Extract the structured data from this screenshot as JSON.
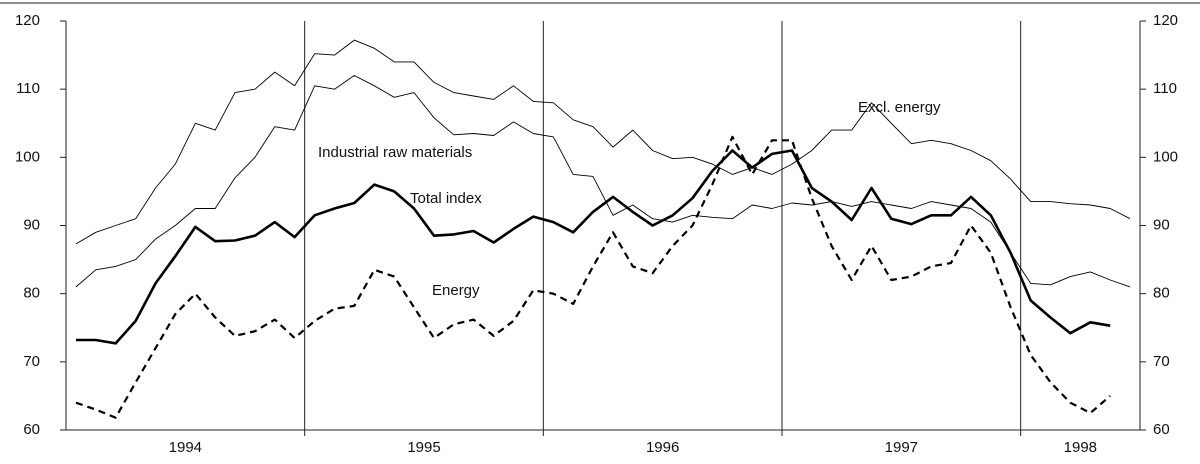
{
  "chart_data": {
    "type": "line",
    "x": [
      1994.042,
      1994.125,
      1994.208,
      1994.292,
      1994.375,
      1994.458,
      1994.542,
      1994.625,
      1994.708,
      1994.792,
      1994.875,
      1994.958,
      1995.042,
      1995.125,
      1995.208,
      1995.292,
      1995.375,
      1995.458,
      1995.542,
      1995.625,
      1995.708,
      1995.792,
      1995.875,
      1995.958,
      1996.042,
      1996.125,
      1996.208,
      1996.292,
      1996.375,
      1996.458,
      1996.542,
      1996.625,
      1996.708,
      1996.792,
      1996.875,
      1996.958,
      1997.042,
      1997.125,
      1997.208,
      1997.292,
      1997.375,
      1997.458,
      1997.542,
      1997.625,
      1997.708,
      1997.792,
      1997.875,
      1997.958,
      1998.042,
      1998.125,
      1998.208,
      1998.292,
      1998.375,
      1998.458
    ],
    "xlim": [
      1994,
      1998.5
    ],
    "xticks": [
      {
        "value": 1994.5,
        "label": "1994"
      },
      {
        "value": 1995.5,
        "label": "1995"
      },
      {
        "value": 1996.5,
        "label": "1996"
      },
      {
        "value": 1997.5,
        "label": "1997"
      },
      {
        "value": 1998.25,
        "label": "1998"
      }
    ],
    "xgrid": [
      1995,
      1996,
      1997,
      1998
    ],
    "ylim": [
      60,
      120
    ],
    "yticks": [
      60,
      70,
      80,
      90,
      100,
      110,
      120
    ],
    "y2lim": [
      60,
      120
    ],
    "y2ticks": [
      60,
      70,
      80,
      90,
      100,
      110,
      120
    ],
    "series": [
      {
        "name": "Total index",
        "color": "#000000",
        "line_width": 2.6,
        "line_style": "solid",
        "values": [
          73.2,
          73.2,
          72.7,
          76,
          81.5,
          85.5,
          89.8,
          87.7,
          87.8,
          88.5,
          90.5,
          88.3,
          91.5,
          92.5,
          93.3,
          96,
          95,
          92.5,
          88.5,
          88.7,
          89.2,
          87.5,
          89.5,
          91.3,
          90.5,
          89,
          92,
          94.2,
          92,
          90,
          91.5,
          94,
          98,
          101,
          98.5,
          100.5,
          101,
          95.5,
          93.5,
          90.8,
          95.5,
          91,
          90.2,
          91.5,
          91.5,
          94.2,
          91.5,
          86,
          79,
          76.5,
          74.2,
          75.8,
          75.3,
          null
        ]
      },
      {
        "name": "Energy",
        "color": "#000000",
        "line_width": 2.2,
        "line_style": "dashed",
        "values": [
          64,
          63,
          61.8,
          67,
          72,
          77,
          80,
          76.5,
          73.8,
          74.5,
          76.2,
          73.5,
          76,
          77.8,
          78.2,
          83.5,
          82.5,
          78,
          73.5,
          75.5,
          76.2,
          73.8,
          76,
          80.5,
          80,
          78.5,
          84,
          89,
          84,
          83,
          87,
          90,
          96,
          103,
          97.5,
          102.5,
          102.5,
          94,
          87,
          82,
          87,
          82,
          82.5,
          84,
          84.5,
          90,
          86,
          78,
          71,
          67,
          64,
          62.5,
          65,
          null
        ]
      },
      {
        "name": "Excl. energy",
        "color": "#000000",
        "line_width": 0.9,
        "line_style": "solid",
        "values": [
          87.3,
          89,
          90,
          91,
          95.5,
          99,
          105,
          104,
          109.5,
          110,
          112.5,
          110.5,
          115.2,
          115,
          117.2,
          116,
          114,
          114,
          111,
          109.5,
          109,
          108.5,
          110.5,
          108.2,
          108,
          105.5,
          104.5,
          101.5,
          104,
          101,
          99.8,
          100,
          99,
          97.5,
          98.5,
          97.5,
          99,
          101,
          104,
          104,
          108,
          105,
          102,
          102.5,
          102,
          101,
          99.5,
          96.8,
          93.5,
          93.5,
          93.2,
          93,
          92.5,
          91
        ]
      },
      {
        "name": "Industrial raw materials",
        "color": "#000000",
        "line_width": 0.9,
        "line_style": "solid",
        "values": [
          81,
          83.5,
          84,
          85,
          88,
          90,
          92.5,
          92.5,
          97,
          100,
          104.5,
          104,
          110.5,
          110,
          112,
          110.5,
          108.8,
          109.5,
          105.8,
          103.3,
          103.5,
          103.2,
          105.2,
          103.5,
          103,
          97.5,
          97.2,
          91.5,
          93,
          91,
          90.5,
          91.5,
          91.2,
          91,
          93,
          92.5,
          93.3,
          93,
          93.5,
          92.8,
          93.5,
          93,
          92.5,
          93.5,
          93,
          92.5,
          90.5,
          86,
          81.5,
          81.3,
          82.5,
          83.2,
          82,
          81
        ]
      }
    ]
  }
}
